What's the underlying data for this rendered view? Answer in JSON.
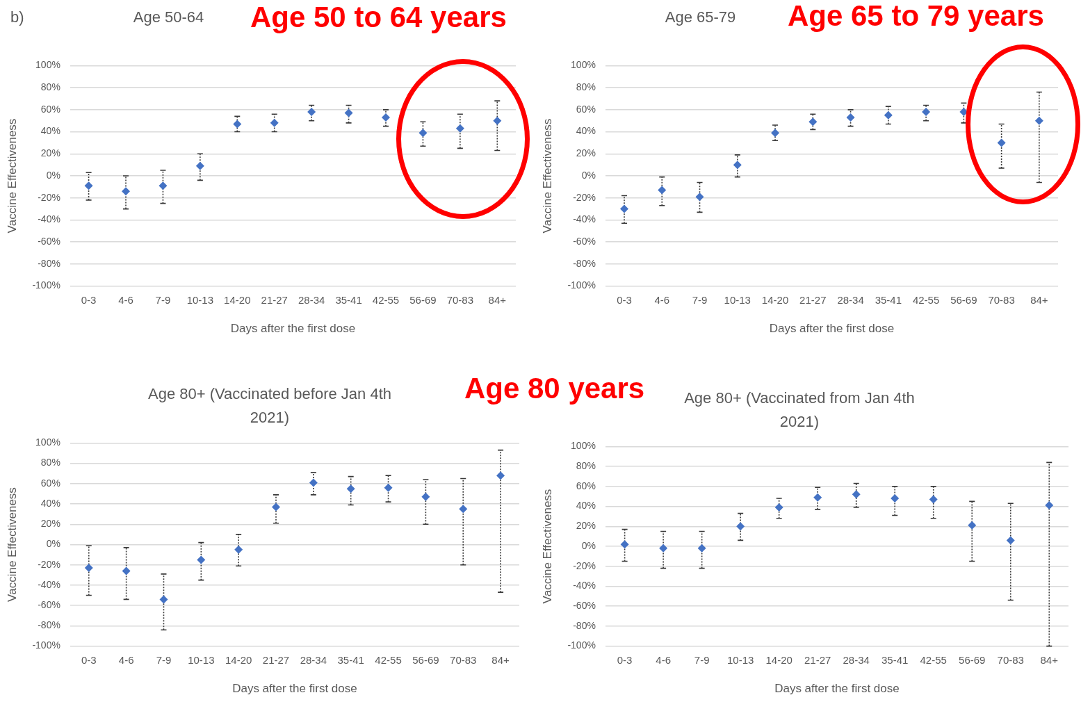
{
  "chart_data": [
    {
      "type": "scatter",
      "title": "Age 50-64",
      "xlabel": "Days after the first dose",
      "ylabel": "Vaccine Effectiveness",
      "annotations": [
        "b)",
        "Age 50 to 64 years"
      ],
      "categories": [
        "0-3",
        "4-6",
        "7-9",
        "10-13",
        "14-20",
        "21-27",
        "28-34",
        "35-41",
        "42-55",
        "56-69",
        "70-83",
        "84+"
      ],
      "values": [
        -9,
        -14,
        -9,
        9,
        47,
        48,
        58,
        57,
        53,
        39,
        43,
        50
      ],
      "color": "#4472c4",
      "errors": [
        [
          -22,
          3
        ],
        [
          -30,
          0
        ],
        [
          -25,
          5
        ],
        [
          -4,
          20
        ],
        [
          40,
          54
        ],
        [
          40,
          56
        ],
        [
          50,
          64
        ],
        [
          48,
          64
        ],
        [
          45,
          60
        ],
        [
          27,
          49
        ],
        [
          25,
          56
        ],
        [
          23,
          68
        ]
      ],
      "ylim": [
        -100,
        100
      ],
      "yticks": [
        {
          "value": -100,
          "label": "-100%"
        },
        {
          "value": -80,
          "label": "-80%"
        },
        {
          "value": -60,
          "label": "-60%"
        },
        {
          "value": -40,
          "label": "-40%"
        },
        {
          "value": -20,
          "label": "-20%"
        },
        {
          "value": 0,
          "label": "0%"
        },
        {
          "value": 20,
          "label": "20%"
        },
        {
          "value": 40,
          "label": "40%"
        },
        {
          "value": 60,
          "label": "60%"
        },
        {
          "value": 80,
          "label": "80%"
        },
        {
          "value": 100,
          "label": "100%"
        }
      ],
      "grid": "y",
      "marker": "diamond"
    },
    {
      "type": "scatter",
      "title": "Age 65-79",
      "xlabel": "Days after the first dose",
      "ylabel": "Vaccine Effectiveness",
      "annotations": [
        "Age 65 to 79 years"
      ],
      "categories": [
        "0-3",
        "4-6",
        "7-9",
        "10-13",
        "14-20",
        "21-27",
        "28-34",
        "35-41",
        "42-55",
        "56-69",
        "70-83",
        "84+"
      ],
      "values": [
        -30,
        -13,
        -19,
        10,
        39,
        49,
        53,
        55,
        58,
        58,
        30,
        50
      ],
      "color": "#4472c4",
      "errors": [
        [
          -43,
          -18
        ],
        [
          -27,
          -1
        ],
        [
          -33,
          -6
        ],
        [
          -1,
          19
        ],
        [
          32,
          46
        ],
        [
          42,
          56
        ],
        [
          45,
          60
        ],
        [
          47,
          63
        ],
        [
          50,
          64
        ],
        [
          48,
          66
        ],
        [
          7,
          47
        ],
        [
          -6,
          76
        ]
      ],
      "ylim": [
        -100,
        100
      ],
      "yticks": [
        {
          "value": -100,
          "label": "-100%"
        },
        {
          "value": -80,
          "label": "-80%"
        },
        {
          "value": -60,
          "label": "-60%"
        },
        {
          "value": -40,
          "label": "-40%"
        },
        {
          "value": -20,
          "label": "-20%"
        },
        {
          "value": 0,
          "label": "0%"
        },
        {
          "value": 20,
          "label": "20%"
        },
        {
          "value": 40,
          "label": "40%"
        },
        {
          "value": 60,
          "label": "60%"
        },
        {
          "value": 80,
          "label": "80%"
        },
        {
          "value": 100,
          "label": "100%"
        }
      ],
      "grid": "y",
      "marker": "diamond"
    },
    {
      "type": "scatter",
      "title": "Age 80+ (Vaccinated before Jan 4th 2021)",
      "xlabel": "Days after the first dose",
      "ylabel": "Vaccine Effectiveness",
      "annotations": [
        "Age 80 years"
      ],
      "categories": [
        "0-3",
        "4-6",
        "7-9",
        "10-13",
        "14-20",
        "21-27",
        "28-34",
        "35-41",
        "42-55",
        "56-69",
        "70-83",
        "84+"
      ],
      "values": [
        -23,
        -26,
        -54,
        -15,
        -5,
        37,
        61,
        55,
        56,
        47,
        35,
        68
      ],
      "color": "#4472c4",
      "errors": [
        [
          -50,
          -1
        ],
        [
          -54,
          -3
        ],
        [
          -84,
          -29
        ],
        [
          -35,
          2
        ],
        [
          -21,
          10
        ],
        [
          21,
          49
        ],
        [
          49,
          71
        ],
        [
          39,
          67
        ],
        [
          42,
          68
        ],
        [
          20,
          64
        ],
        [
          -20,
          65
        ],
        [
          -47,
          93
        ]
      ],
      "ylim": [
        -100,
        100
      ],
      "yticks": [
        {
          "value": -100,
          "label": "-100%"
        },
        {
          "value": -80,
          "label": "-80%"
        },
        {
          "value": -60,
          "label": "-60%"
        },
        {
          "value": -40,
          "label": "-40%"
        },
        {
          "value": -20,
          "label": "-20%"
        },
        {
          "value": 0,
          "label": "0%"
        },
        {
          "value": 20,
          "label": "20%"
        },
        {
          "value": 40,
          "label": "40%"
        },
        {
          "value": 60,
          "label": "60%"
        },
        {
          "value": 80,
          "label": "80%"
        },
        {
          "value": 100,
          "label": "100%"
        }
      ],
      "grid": "y",
      "marker": "diamond"
    },
    {
      "type": "scatter",
      "title": "Age 80+ (Vaccinated from Jan 4th 2021)",
      "xlabel": "Days after the first dose",
      "ylabel": "Vaccine Effectiveness",
      "categories": [
        "0-3",
        "4-6",
        "7-9",
        "10-13",
        "14-20",
        "21-27",
        "28-34",
        "35-41",
        "42-55",
        "56-69",
        "70-83",
        "84+"
      ],
      "values": [
        2,
        -2,
        -2,
        20,
        39,
        49,
        52,
        48,
        47,
        21,
        6,
        41
      ],
      "color": "#4472c4",
      "errors": [
        [
          -15,
          17
        ],
        [
          -22,
          15
        ],
        [
          -22,
          15
        ],
        [
          6,
          33
        ],
        [
          28,
          48
        ],
        [
          37,
          59
        ],
        [
          39,
          63
        ],
        [
          31,
          60
        ],
        [
          28,
          60
        ],
        [
          -15,
          45
        ],
        [
          -54,
          43
        ],
        [
          -100,
          84
        ]
      ],
      "ylim": [
        -100,
        100
      ],
      "yticks": [
        {
          "value": -100,
          "label": "-100%"
        },
        {
          "value": -80,
          "label": "-80%"
        },
        {
          "value": -60,
          "label": "-60%"
        },
        {
          "value": -40,
          "label": "-40%"
        },
        {
          "value": -20,
          "label": "-20%"
        },
        {
          "value": 0,
          "label": "0%"
        },
        {
          "value": 20,
          "label": "20%"
        },
        {
          "value": 40,
          "label": "40%"
        },
        {
          "value": 60,
          "label": "60%"
        },
        {
          "value": 80,
          "label": "80%"
        },
        {
          "value": 100,
          "label": "100%"
        }
      ],
      "grid": "y",
      "marker": "diamond"
    }
  ]
}
